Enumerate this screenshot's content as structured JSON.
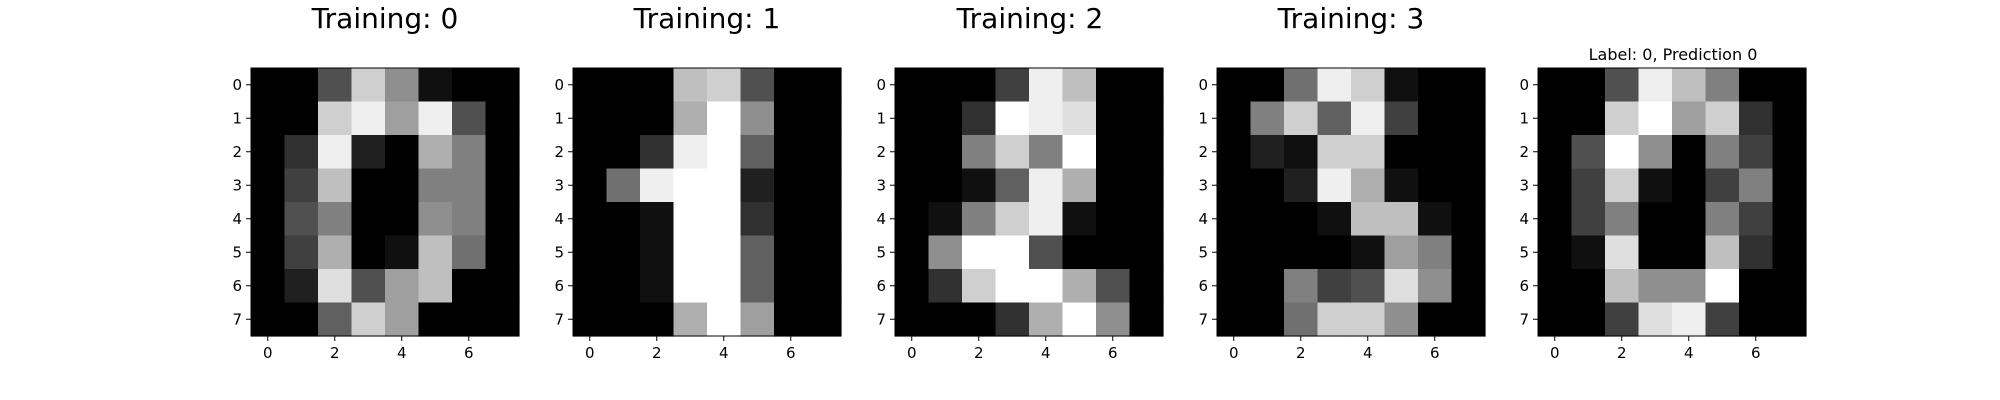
{
  "chart_data": [
    {
      "type": "heatmap",
      "title": "Training: 0",
      "xticks": [
        0,
        2,
        4,
        6
      ],
      "yticks": [
        0,
        1,
        2,
        3,
        4,
        5,
        6,
        7
      ],
      "xlim": [
        -0.5,
        7.5
      ],
      "ylim": [
        7.5,
        -0.5
      ],
      "colormap": "gray",
      "value_range": [
        0,
        16
      ],
      "grid": false,
      "values": [
        [
          0,
          0,
          5,
          13,
          9,
          1,
          0,
          0
        ],
        [
          0,
          0,
          13,
          15,
          10,
          15,
          5,
          0
        ],
        [
          0,
          3,
          15,
          2,
          0,
          11,
          8,
          0
        ],
        [
          0,
          4,
          12,
          0,
          0,
          8,
          8,
          0
        ],
        [
          0,
          5,
          8,
          0,
          0,
          9,
          8,
          0
        ],
        [
          0,
          4,
          11,
          0,
          1,
          12,
          7,
          0
        ],
        [
          0,
          2,
          14,
          5,
          10,
          12,
          0,
          0
        ],
        [
          0,
          0,
          6,
          13,
          10,
          0,
          0,
          0
        ]
      ]
    },
    {
      "type": "heatmap",
      "title": "Training: 1",
      "xticks": [
        0,
        2,
        4,
        6
      ],
      "yticks": [
        0,
        1,
        2,
        3,
        4,
        5,
        6,
        7
      ],
      "xlim": [
        -0.5,
        7.5
      ],
      "ylim": [
        7.5,
        -0.5
      ],
      "colormap": "gray",
      "value_range": [
        0,
        16
      ],
      "grid": false,
      "values": [
        [
          0,
          0,
          0,
          12,
          13,
          5,
          0,
          0
        ],
        [
          0,
          0,
          0,
          11,
          16,
          9,
          0,
          0
        ],
        [
          0,
          0,
          3,
          15,
          16,
          6,
          0,
          0
        ],
        [
          0,
          7,
          15,
          16,
          16,
          2,
          0,
          0
        ],
        [
          0,
          0,
          1,
          16,
          16,
          3,
          0,
          0
        ],
        [
          0,
          0,
          1,
          16,
          16,
          6,
          0,
          0
        ],
        [
          0,
          0,
          1,
          16,
          16,
          6,
          0,
          0
        ],
        [
          0,
          0,
          0,
          11,
          16,
          10,
          0,
          0
        ]
      ]
    },
    {
      "type": "heatmap",
      "title": "Training: 2",
      "xticks": [
        0,
        2,
        4,
        6
      ],
      "yticks": [
        0,
        1,
        2,
        3,
        4,
        5,
        6,
        7
      ],
      "xlim": [
        -0.5,
        7.5
      ],
      "ylim": [
        7.5,
        -0.5
      ],
      "colormap": "gray",
      "value_range": [
        0,
        16
      ],
      "grid": false,
      "values": [
        [
          0,
          0,
          0,
          4,
          15,
          12,
          0,
          0
        ],
        [
          0,
          0,
          3,
          16,
          15,
          14,
          0,
          0
        ],
        [
          0,
          0,
          8,
          13,
          8,
          16,
          0,
          0
        ],
        [
          0,
          0,
          1,
          6,
          15,
          11,
          0,
          0
        ],
        [
          0,
          1,
          8,
          13,
          15,
          1,
          0,
          0
        ],
        [
          0,
          9,
          16,
          16,
          5,
          0,
          0,
          0
        ],
        [
          0,
          3,
          13,
          16,
          16,
          11,
          5,
          0
        ],
        [
          0,
          0,
          0,
          3,
          11,
          16,
          9,
          0
        ]
      ]
    },
    {
      "type": "heatmap",
      "title": "Training: 3",
      "xticks": [
        0,
        2,
        4,
        6
      ],
      "yticks": [
        0,
        1,
        2,
        3,
        4,
        5,
        6,
        7
      ],
      "xlim": [
        -0.5,
        7.5
      ],
      "ylim": [
        7.5,
        -0.5
      ],
      "colormap": "gray",
      "value_range": [
        0,
        16
      ],
      "grid": false,
      "values": [
        [
          0,
          0,
          7,
          15,
          13,
          1,
          0,
          0
        ],
        [
          0,
          8,
          13,
          6,
          15,
          4,
          0,
          0
        ],
        [
          0,
          2,
          1,
          13,
          13,
          0,
          0,
          0
        ],
        [
          0,
          0,
          2,
          15,
          11,
          1,
          0,
          0
        ],
        [
          0,
          0,
          0,
          1,
          12,
          12,
          1,
          0
        ],
        [
          0,
          0,
          0,
          0,
          1,
          10,
          8,
          0
        ],
        [
          0,
          0,
          8,
          4,
          5,
          14,
          9,
          0
        ],
        [
          0,
          0,
          7,
          13,
          13,
          9,
          0,
          0
        ]
      ]
    },
    {
      "type": "heatmap",
      "title": "Label: 0, Prediction 0",
      "xticks": [
        0,
        2,
        4,
        6
      ],
      "yticks": [
        0,
        1,
        2,
        3,
        4,
        5,
        6,
        7
      ],
      "xlim": [
        -0.5,
        7.5
      ],
      "ylim": [
        7.5,
        -0.5
      ],
      "colormap": "gray",
      "value_range": [
        0,
        16
      ],
      "grid": false,
      "values": [
        [
          0,
          0,
          5,
          15,
          12,
          8,
          0,
          0
        ],
        [
          0,
          0,
          13,
          16,
          10,
          13,
          3,
          0
        ],
        [
          0,
          5,
          16,
          9,
          0,
          8,
          4,
          0
        ],
        [
          0,
          4,
          13,
          1,
          0,
          4,
          8,
          0
        ],
        [
          0,
          4,
          8,
          0,
          0,
          8,
          4,
          0
        ],
        [
          0,
          1,
          14,
          0,
          0,
          12,
          3,
          0
        ],
        [
          0,
          0,
          12,
          9,
          9,
          16,
          0,
          0
        ],
        [
          0,
          0,
          4,
          14,
          15,
          4,
          0,
          0
        ]
      ]
    }
  ]
}
